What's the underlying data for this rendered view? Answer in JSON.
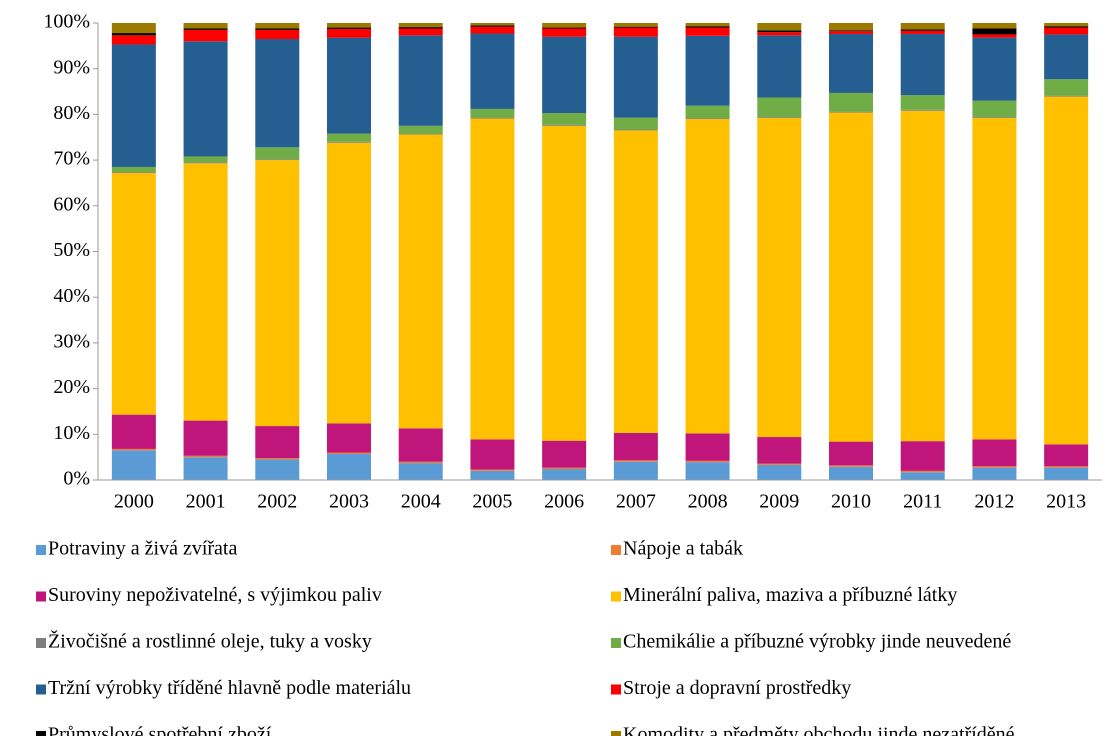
{
  "chart_data": {
    "type": "stacked_bar",
    "categories": [
      "2000",
      "2001",
      "2002",
      "2003",
      "2004",
      "2005",
      "2006",
      "2007",
      "2008",
      "2009",
      "2010",
      "2011",
      "2012",
      "2013"
    ],
    "ylim": [
      0,
      100
    ],
    "yticks": [
      {
        "value": 0,
        "label": "0%"
      },
      {
        "value": 10,
        "label": "10%"
      },
      {
        "value": 20,
        "label": "20%"
      },
      {
        "value": 30,
        "label": "30%"
      },
      {
        "value": 40,
        "label": "40%"
      },
      {
        "value": 50,
        "label": "50%"
      },
      {
        "value": 60,
        "label": "60%"
      },
      {
        "value": 70,
        "label": "70%"
      },
      {
        "value": 80,
        "label": "80%"
      },
      {
        "value": 90,
        "label": "90%"
      },
      {
        "value": 100,
        "label": "100%"
      }
    ],
    "legend": "bottom",
    "series": [
      {
        "name": "Potraviny a živá zvířata",
        "color": "#5b9bd5",
        "values": [
          6.5,
          5.0,
          4.5,
          5.7,
          3.7,
          2.0,
          2.4,
          4.0,
          3.9,
          3.3,
          2.9,
          1.7,
          2.7,
          2.7
        ]
      },
      {
        "name": "Nápoje a tabák",
        "color": "#ed7d31",
        "values": [
          0.3,
          0.3,
          0.3,
          0.3,
          0.3,
          0.3,
          0.3,
          0.3,
          0.3,
          0.3,
          0.3,
          0.3,
          0.3,
          0.3
        ]
      },
      {
        "name": "Suroviny nepoživatelné, s výjimkou paliv",
        "color": "#c0157a",
        "values": [
          7.5,
          7.7,
          7.0,
          6.4,
          7.3,
          6.6,
          5.9,
          6.0,
          6.0,
          5.8,
          5.2,
          6.5,
          5.9,
          4.8
        ]
      },
      {
        "name": "Minerální paliva, maziva a příbuzné látky",
        "color": "#ffc000",
        "values": [
          52.9,
          56.3,
          58.2,
          61.4,
          64.3,
          70.2,
          68.9,
          66.2,
          68.8,
          69.8,
          72.0,
          72.3,
          70.3,
          76.1
        ]
      },
      {
        "name": "Živočišné a rostlinné oleje, tuky a vosky",
        "color": "#7f7f7f",
        "values": [
          0.2,
          0.2,
          0.2,
          0.2,
          0.2,
          0.2,
          0.2,
          0.2,
          0.2,
          0.2,
          0.2,
          0.2,
          0.2,
          0.2
        ]
      },
      {
        "name": "Chemikálie a příbuzné výrobky jinde neuvedené",
        "color": "#70ad47",
        "values": [
          1.1,
          1.3,
          2.6,
          1.8,
          1.7,
          1.9,
          2.6,
          2.6,
          2.7,
          4.3,
          4.1,
          3.2,
          3.6,
          3.6
        ]
      },
      {
        "name": "Tržní výrobky tříděné hlavně podle materiálu",
        "color": "#255e91",
        "values": [
          26.8,
          25.2,
          23.7,
          21.0,
          19.8,
          16.5,
          16.7,
          17.7,
          15.3,
          13.6,
          12.9,
          13.4,
          13.8,
          9.8
        ]
      },
      {
        "name": "Stroje a dopravní prostředky",
        "color": "#ff0000",
        "values": [
          2.0,
          2.5,
          2.0,
          1.9,
          1.5,
          1.5,
          1.8,
          2.0,
          1.8,
          0.7,
          0.6,
          0.7,
          0.7,
          1.5
        ]
      },
      {
        "name": "Průmyslové spotřební zboží",
        "color": "#000000",
        "values": [
          0.5,
          0.3,
          0.3,
          0.3,
          0.3,
          0.3,
          0.2,
          0.2,
          0.3,
          0.4,
          0.2,
          0.3,
          1.3,
          0.3
        ]
      },
      {
        "name": "Komodity a předměty obchodu jinde nezatříděné",
        "color": "#9c7a00",
        "values": [
          2.2,
          1.2,
          1.2,
          1.0,
          0.9,
          0.5,
          1.0,
          0.8,
          0.7,
          1.6,
          1.6,
          1.4,
          1.2,
          0.7
        ]
      }
    ]
  }
}
